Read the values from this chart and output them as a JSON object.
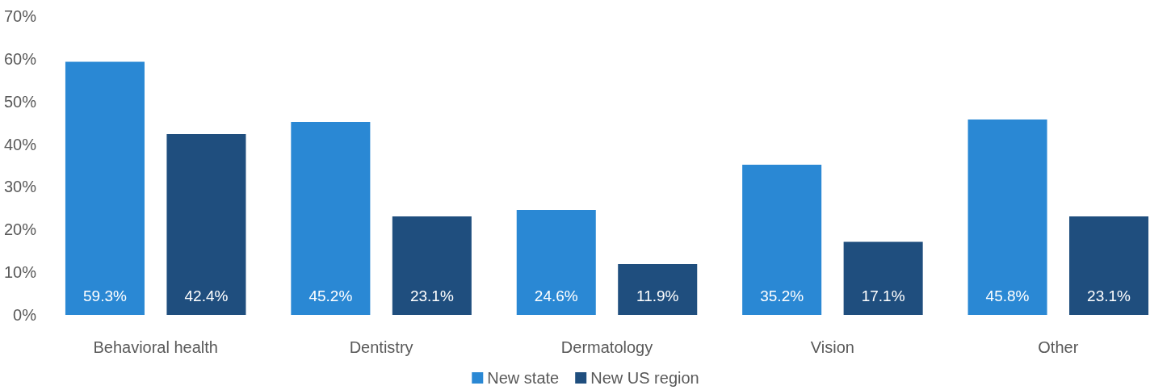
{
  "chart_data": {
    "type": "bar",
    "categories": [
      "Behavioral health",
      "Dentistry",
      "Dermatology",
      "Vision",
      "Other"
    ],
    "series": [
      {
        "name": "New state",
        "color": "#2a88d4",
        "values": [
          59.3,
          45.2,
          24.6,
          35.2,
          45.8
        ]
      },
      {
        "name": "New US region",
        "color": "#1f4e7e",
        "values": [
          42.4,
          23.1,
          11.9,
          17.1,
          23.1
        ]
      }
    ],
    "ylim": [
      0,
      70
    ],
    "yticks": [
      {
        "value": 0,
        "label": "0%"
      },
      {
        "value": 10,
        "label": "10%"
      },
      {
        "value": 20,
        "label": "20%"
      },
      {
        "value": 30,
        "label": "30%"
      },
      {
        "value": 40,
        "label": "40%"
      },
      {
        "value": 50,
        "label": "50%"
      },
      {
        "value": 60,
        "label": "60%"
      },
      {
        "value": 70,
        "label": "70%"
      }
    ],
    "value_labels": [
      [
        "59.3%",
        "45.2%",
        "24.6%",
        "35.2%",
        "45.8%"
      ],
      [
        "42.4%",
        "23.1%",
        "11.9%",
        "17.1%",
        "23.1%"
      ]
    ],
    "grid": false,
    "legend": "bottom"
  }
}
